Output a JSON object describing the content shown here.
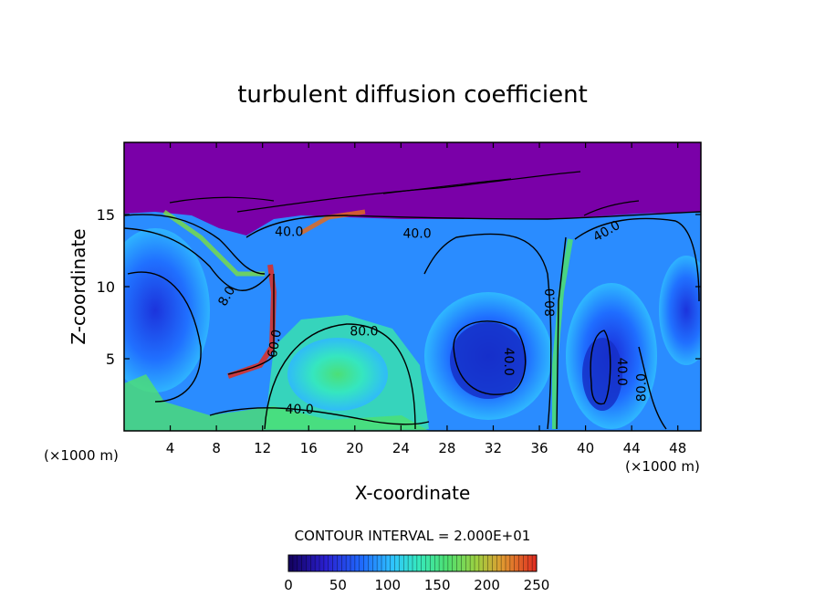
{
  "chart_data": {
    "type": "heatmap",
    "title": "turbulent diffusion coefficient",
    "xlabel": "X-coordinate",
    "ylabel": "Z-coordinate",
    "x_unit": "(×1000 m)",
    "x_unit_right": "(×1000 m)",
    "xlim": [
      0,
      50
    ],
    "ylim": [
      0,
      20
    ],
    "x_ticks": [
      "4",
      "8",
      "12",
      "16",
      "20",
      "24",
      "28",
      "32",
      "36",
      "40",
      "44",
      "48"
    ],
    "y_ticks": [
      "5",
      "10",
      "15"
    ],
    "contour_interval_text": "CONTOUR INTERVAL = 2.000E+01",
    "contour_labels": [
      {
        "text": "40.0",
        "x": 14.3,
        "z": 13.5,
        "rot": 0
      },
      {
        "text": "40.0",
        "x": 25.4,
        "z": 13.4,
        "rot": 0
      },
      {
        "text": "40.0",
        "x": 42.0,
        "z": 13.6,
        "rot": -30
      },
      {
        "text": "80.0",
        "x": 20.8,
        "z": 6.6,
        "rot": 0
      },
      {
        "text": "80.0",
        "x": 37.3,
        "z": 8.9,
        "rot": -90
      },
      {
        "text": "8.0",
        "x": 9.2,
        "z": 9.2,
        "rot": -60
      },
      {
        "text": "60.0",
        "x": 13.4,
        "z": 6.0,
        "rot": -80
      },
      {
        "text": "40.0",
        "x": 33.0,
        "z": 4.8,
        "rot": 90
      },
      {
        "text": "40.0",
        "x": 42.8,
        "z": 4.1,
        "rot": 90
      },
      {
        "text": "80.0",
        "x": 45.2,
        "z": 3.0,
        "rot": -90
      },
      {
        "text": "40.0",
        "x": 15.2,
        "z": 1.2,
        "rot": 0
      }
    ],
    "colorbar": {
      "min": 0,
      "max": 250,
      "ticks": [
        "0",
        "50",
        "100",
        "150",
        "200",
        "250"
      ],
      "colors": [
        "#1a0070",
        "#2a1fd0",
        "#1f6dff",
        "#2fc4ff",
        "#35e8c0",
        "#4ee070",
        "#7ce040",
        "#c8d030",
        "#f08030",
        "#e02a20"
      ]
    },
    "background_color": "#7a00a8"
  }
}
